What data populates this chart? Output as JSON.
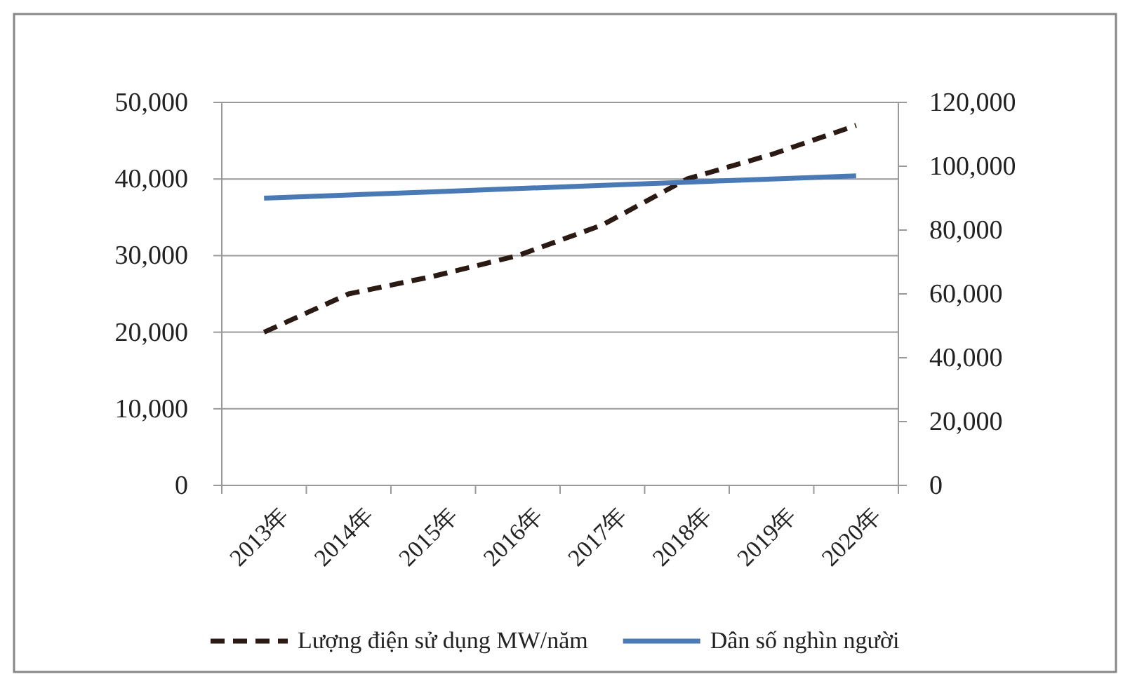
{
  "chart_data": {
    "type": "line",
    "categories": [
      "2013年",
      "2014年",
      "2015年",
      "2016年",
      "2017年",
      "2018年",
      "2019年",
      "2020年"
    ],
    "series": [
      {
        "name": "Lượng điện sử dụng MW/năm",
        "color": "#2b1a14",
        "line_style": "dashed",
        "values": [
          20000,
          25000,
          27300,
          30000,
          34000,
          40000,
          43200,
          47000
        ]
      },
      {
        "name": "Dân số nghìn người",
        "color": "#4a7ab5",
        "line_style": "solid",
        "axis": "y2",
        "values": [
          90000,
          91000,
          92000,
          93000,
          94000,
          95000,
          96000,
          97000
        ]
      }
    ],
    "ylim": [
      0,
      50000
    ],
    "yticks": [
      {
        "value": 0,
        "label": "0"
      },
      {
        "value": 10000,
        "label": "10,000"
      },
      {
        "value": 20000,
        "label": "20,000"
      },
      {
        "value": 30000,
        "label": "30,000"
      },
      {
        "value": 40000,
        "label": "40,000"
      },
      {
        "value": 50000,
        "label": "50,000"
      }
    ],
    "y2lim": [
      0,
      120000
    ],
    "y2ticks": [
      {
        "value": 0,
        "label": "0"
      },
      {
        "value": 20000,
        "label": "20,000"
      },
      {
        "value": 40000,
        "label": "40,000"
      },
      {
        "value": 60000,
        "label": "60,000"
      },
      {
        "value": 80000,
        "label": "80,000"
      },
      {
        "value": 100000,
        "label": "100,000"
      },
      {
        "value": 120000,
        "label": "120,000"
      }
    ],
    "grid": "y",
    "legend": "bottom",
    "marker": "none"
  }
}
